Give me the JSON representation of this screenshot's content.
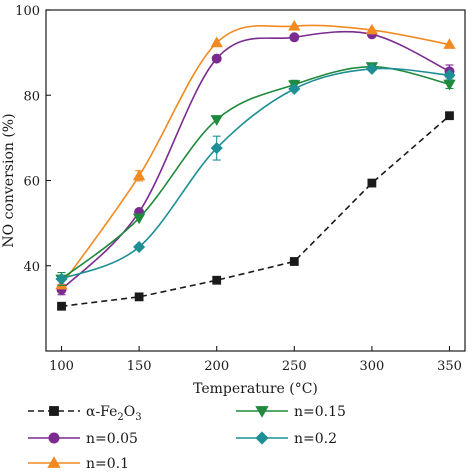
{
  "chart_data": {
    "type": "line",
    "xlabel": "Temperature (°C)",
    "ylabel": "NO conversion (%)",
    "xlim": [
      90,
      360
    ],
    "ylim": [
      20,
      100
    ],
    "x_ticks": [
      100,
      150,
      200,
      250,
      300,
      350
    ],
    "y_ticks": [
      40,
      60,
      80,
      100
    ],
    "grid": false,
    "legend_position": "bottom",
    "series": [
      {
        "name": "α-Fe2O3",
        "label_main": "α-Fe",
        "label_sub1": "2",
        "label_mid": "O",
        "label_sub2": "3",
        "color": "#1a1a1a",
        "marker": "square",
        "line_style": "dashed",
        "smooth": false,
        "x": [
          100,
          150,
          200,
          250,
          300,
          350
        ],
        "y": [
          30.5,
          32.7,
          36.6,
          41.0,
          59.4,
          75.2
        ],
        "err": [
          0,
          0,
          0,
          0,
          0,
          0
        ]
      },
      {
        "name": "n=0.05",
        "color": "#7b2a90",
        "marker": "circle",
        "line_style": "solid",
        "smooth": true,
        "x": [
          100,
          150,
          200,
          250,
          300,
          350
        ],
        "y": [
          34.4,
          52.6,
          88.6,
          93.6,
          94.3,
          85.6
        ],
        "err": [
          1.2,
          0,
          0,
          0,
          0,
          1.5
        ]
      },
      {
        "name": "n=0.1",
        "color": "#f28a22",
        "marker": "triangle-up",
        "line_style": "solid",
        "smooth": true,
        "x": [
          100,
          150,
          200,
          250,
          300,
          350
        ],
        "y": [
          35.5,
          61.1,
          92.3,
          96.2,
          95.3,
          91.9
        ],
        "err": [
          0,
          1.2,
          0,
          0,
          0,
          0
        ]
      },
      {
        "name": "n=0.15",
        "color": "#1f8a3c",
        "marker": "triangle-down",
        "line_style": "solid",
        "smooth": true,
        "x": [
          100,
          150,
          200,
          250,
          300,
          350
        ],
        "y": [
          36.9,
          51.2,
          74.3,
          82.5,
          86.7,
          82.6
        ],
        "err": [
          1.5,
          0,
          0,
          1.0,
          0,
          1.0
        ]
      },
      {
        "name": "n=0.2",
        "color": "#1e8f95",
        "marker": "diamond",
        "line_style": "solid",
        "smooth": true,
        "x": [
          100,
          150,
          200,
          250,
          300,
          350
        ],
        "y": [
          36.9,
          44.4,
          67.6,
          81.5,
          86.2,
          84.7
        ],
        "err": [
          0,
          0,
          2.8,
          0,
          0,
          0
        ]
      }
    ]
  }
}
